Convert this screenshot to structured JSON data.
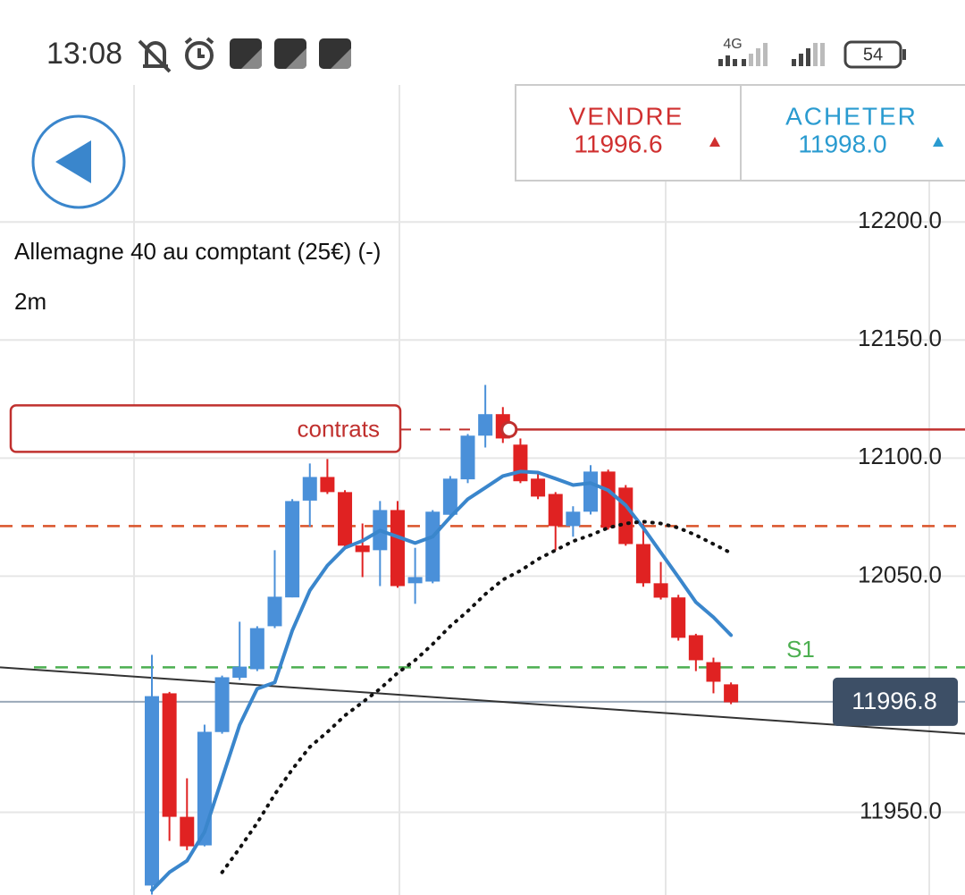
{
  "status_bar": {
    "time": "13:08",
    "network": "4G",
    "battery": "54"
  },
  "header": {
    "sell": {
      "label": "VENDRE",
      "price": "11996.6"
    },
    "buy": {
      "label": "ACHETER",
      "price": "11998.0"
    }
  },
  "instrument": {
    "name": "Allemagne 40 au comptant (25€) (-)",
    "timeframe": "2m"
  },
  "chart_data": {
    "type": "candlestick",
    "ylim": [
      11915,
      12258
    ],
    "yticks": [
      {
        "value": 11950,
        "label": "11950.0"
      },
      {
        "value": 12050,
        "label": "12050.0"
      },
      {
        "value": 12100,
        "label": "12100.0"
      },
      {
        "value": 12150,
        "label": "12150.0"
      },
      {
        "value": 12200,
        "label": "12200.0"
      }
    ],
    "grid": true,
    "up_color": "#4a90d9",
    "down_color": "#e02222",
    "open": [
      11919,
      12000.4,
      11948.1,
      11936,
      11984,
      12007,
      12010.6,
      12028.8,
      12041,
      12082,
      12092,
      12085.6,
      12063,
      12061,
      12078,
      12047,
      12047.7,
      12076,
      12091,
      12109.5,
      12118.6,
      12105.7,
      12091.3,
      12084.8,
      12071.2,
      12077.3,
      12094.3,
      12087.5,
      12063.6,
      12047,
      12041,
      12025,
      12013.6,
      12004.2
    ],
    "close": [
      11999.2,
      11948.1,
      11935.6,
      11984.1,
      12007.2,
      12011.7,
      12028,
      12041.3,
      12081.8,
      12092,
      12085.6,
      12062.9,
      12060.2,
      12078,
      12045.8,
      12049.6,
      12077.3,
      12091.3,
      12109.5,
      12118.6,
      12108.3,
      12090.2,
      12083.7,
      12071.2,
      12077.3,
      12094.3,
      12070.5,
      12063.6,
      12047,
      12040.9,
      12023.9,
      12014.4,
      12005.3,
      11996.6
    ],
    "high": [
      12016.7,
      12001,
      11964.4,
      11987.1,
      12007.9,
      12030.7,
      12028.8,
      12061,
      12082.6,
      12097.7,
      12099.6,
      12086.4,
      12072.3,
      12081.8,
      12081.8,
      12062,
      12078,
      12092.4,
      12110.2,
      12131,
      12121.6,
      12108.3,
      12093.2,
      12085.6,
      12079.6,
      12097,
      12095.1,
      12088.6,
      12072.3,
      12056,
      12042.1,
      12025.6,
      12015.5,
      12005
    ],
    "low": [
      11915.2,
      11937.9,
      11934,
      11935.6,
      11983.3,
      12006,
      12009.8,
      12028,
      12041,
      12071,
      12084.8,
      12062.1,
      12049.6,
      12045.8,
      12045.1,
      12038.3,
      12047,
      12075.4,
      12089.4,
      12104.5,
      12106.4,
      12089.4,
      12082.6,
      12061,
      12066.7,
      12076.1,
      12069.7,
      12062.9,
      12045.5,
      12040.1,
      12022.7,
      12009.8,
      12000.4,
      11995.8
    ],
    "moving_averages": [
      {
        "color": "#3a86cc",
        "style": "solid",
        "values": [
          11917,
          11924.6,
          11929.5,
          11941.7,
          11964.4,
          11987,
          12002.3,
          12005,
          12027,
          12044,
          12054.5,
          12062,
          12065,
          12069.3,
          12066.7,
          12064,
          12066.7,
          12075,
          12082.6,
          12087.5,
          12092.4,
          12094.3,
          12093.9,
          12091.3,
          12088.6,
          12089.4,
          12086.4,
          12080,
          12070.5,
          12060,
          12049.6,
          12039,
          12032.6,
          12025
        ]
      },
      {
        "color": "#111111",
        "style": "dotted",
        "values": [
          null,
          null,
          null,
          null,
          11924.6,
          11934.8,
          11945.5,
          11957.6,
          11968.2,
          11977.7,
          11984,
          11991,
          11996.6,
          12002.3,
          12009,
          12014.4,
          12021.2,
          12028.8,
          12035.2,
          12042.4,
          12048.5,
          12052.3,
          12057.2,
          12061,
          12064.8,
          12067.4,
          12070.5,
          12072.3,
          12073.1,
          12072.3,
          12070.5,
          12067.4,
          12063.6,
          12059.8
        ]
      }
    ],
    "order": {
      "value": 12112.1,
      "label": "contrats",
      "color": "#c0302e"
    },
    "levels": [
      {
        "value": 12071.2,
        "color": "#d9542a",
        "style": "dashed"
      },
      {
        "value": 12011.4,
        "color": "#4caf50",
        "style": "dashed",
        "label": "S1"
      }
    ],
    "trendline": {
      "values": [
        12011.4,
        11983.3
      ],
      "color": "#333333"
    },
    "current_price": {
      "value": 11996.8,
      "label": "11996.8",
      "color": "#3d4f66"
    }
  }
}
